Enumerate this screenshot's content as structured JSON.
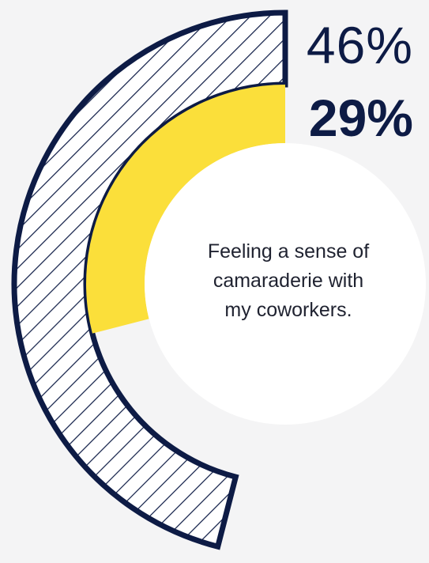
{
  "chart_data": {
    "type": "radial-bar",
    "series": [
      {
        "value": 46,
        "label": "46%"
      },
      {
        "value": 29,
        "label": "29%"
      }
    ],
    "center_text": [
      "Feeling a sense of",
      "camaraderie with",
      "my coworkers."
    ],
    "max": 100
  },
  "colors": {
    "background": "#f4f4f5",
    "outer_stroke": "#0d1b45",
    "outer_hatch": "#0d1b45",
    "inner_fill": "#fbdf3a",
    "center_fill": "#ffffff",
    "text": "#0d1b45"
  }
}
